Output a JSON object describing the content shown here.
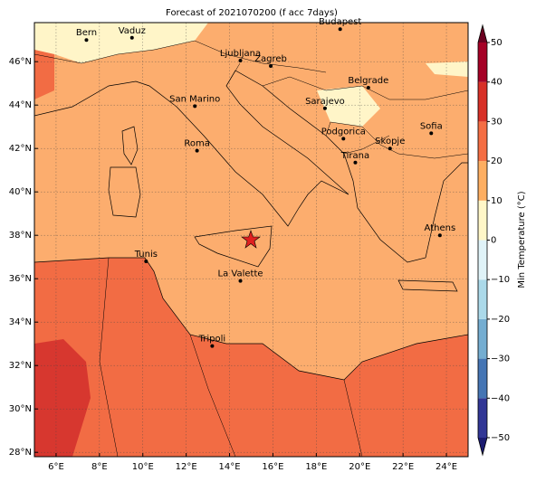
{
  "title": "Forecast of 2021070200 (f acc 7days)",
  "map": {
    "xlim": [
      5,
      25
    ],
    "ylim": [
      27.8,
      47.8
    ],
    "grid": true,
    "xticks": [
      {
        "value": 6,
        "label": "6°E"
      },
      {
        "value": 8,
        "label": "8°E"
      },
      {
        "value": 10,
        "label": "10°E"
      },
      {
        "value": 12,
        "label": "12°E"
      },
      {
        "value": 14,
        "label": "14°E"
      },
      {
        "value": 16,
        "label": "16°E"
      },
      {
        "value": 18,
        "label": "18°E"
      },
      {
        "value": 20,
        "label": "20°E"
      },
      {
        "value": 22,
        "label": "22°E"
      },
      {
        "value": 24,
        "label": "24°E"
      }
    ],
    "yticks": [
      {
        "value": 28,
        "label": "28°N"
      },
      {
        "value": 30,
        "label": "30°N"
      },
      {
        "value": 32,
        "label": "32°N"
      },
      {
        "value": 34,
        "label": "34°N"
      },
      {
        "value": 36,
        "label": "36°N"
      },
      {
        "value": 38,
        "label": "38°N"
      },
      {
        "value": 40,
        "label": "40°N"
      },
      {
        "value": 42,
        "label": "42°N"
      },
      {
        "value": 44,
        "label": "44°N"
      },
      {
        "value": 46,
        "label": "46°N"
      }
    ],
    "cities": [
      {
        "name": "Bern",
        "lon": 7.4,
        "lat": 47.0
      },
      {
        "name": "Vaduz",
        "lon": 9.5,
        "lat": 47.1
      },
      {
        "name": "Ljubljana",
        "lon": 14.5,
        "lat": 46.05
      },
      {
        "name": "Zagreb",
        "lon": 15.9,
        "lat": 45.8
      },
      {
        "name": "Budapest",
        "lon": 19.1,
        "lat": 47.5
      },
      {
        "name": "Belgrade",
        "lon": 20.4,
        "lat": 44.8
      },
      {
        "name": "San Marino",
        "lon": 12.4,
        "lat": 43.95
      },
      {
        "name": "Sarajevo",
        "lon": 18.4,
        "lat": 43.85
      },
      {
        "name": "Sofia",
        "lon": 23.3,
        "lat": 42.7
      },
      {
        "name": "Roma",
        "lon": 12.5,
        "lat": 41.9
      },
      {
        "name": "Podgorica",
        "lon": 19.25,
        "lat": 42.45
      },
      {
        "name": "Skopje",
        "lon": 21.4,
        "lat": 42.0
      },
      {
        "name": "Tirana",
        "lon": 19.8,
        "lat": 41.35
      },
      {
        "name": "Athens",
        "lon": 23.7,
        "lat": 38.0
      },
      {
        "name": "Tunis",
        "lon": 10.15,
        "lat": 36.8
      },
      {
        "name": "La Valette",
        "lon": 14.5,
        "lat": 35.9
      },
      {
        "name": "Tripoli",
        "lon": 13.2,
        "lat": 32.9
      }
    ]
  },
  "colorbar": {
    "label": "Min Temperature (°C)",
    "lim": [
      -50,
      50
    ],
    "ticks": [
      {
        "value": -50,
        "label": "−50"
      },
      {
        "value": -40,
        "label": "−40"
      },
      {
        "value": -30,
        "label": "−30"
      },
      {
        "value": -20,
        "label": "−20"
      },
      {
        "value": -10,
        "label": "−10"
      },
      0,
      10,
      20,
      30,
      40,
      50
    ],
    "colors": [
      "#313695",
      "#4575b4",
      "#74add1",
      "#abd9e9",
      "#e0f3f8",
      "#fff7c8",
      "#fdae61",
      "#f46d43",
      "#d73027",
      "#a50026"
    ],
    "under_color": "#1b1b70",
    "over_color": "#6b0020"
  }
}
